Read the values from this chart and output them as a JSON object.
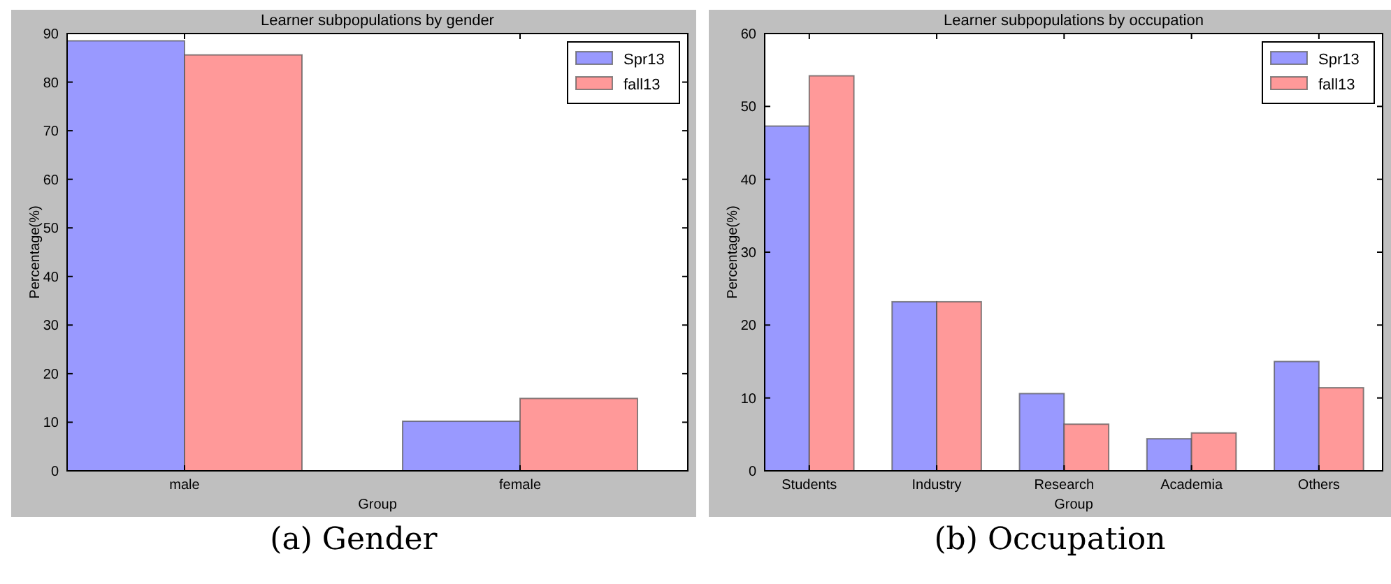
{
  "chart_data": [
    {
      "type": "bar",
      "title": "Learner subpopulations by gender",
      "xlabel": "Group",
      "ylabel": "Percentage(%)",
      "categories": [
        "male",
        "female"
      ],
      "series": [
        {
          "name": "Spr13",
          "color": "#9999ff",
          "values": [
            88.5,
            10.2
          ]
        },
        {
          "name": "fall13",
          "color": "#ff9999",
          "values": [
            85.6,
            14.9
          ]
        }
      ],
      "ylim": [
        0,
        90
      ],
      "yticks": [
        0,
        10,
        20,
        30,
        40,
        50,
        60,
        70,
        80,
        90
      ],
      "grid": false,
      "legend": "top right",
      "annotations": [
        "(a) Gender"
      ]
    },
    {
      "type": "bar",
      "title": "Learner subpopulations by occupation",
      "xlabel": "Group",
      "ylabel": "Percentage(%)",
      "categories": [
        "Students",
        "Industry",
        "Research",
        "Academia",
        "Others"
      ],
      "series": [
        {
          "name": "Spr13",
          "color": "#9999ff",
          "values": [
            47.3,
            23.2,
            10.6,
            4.4,
            15.0
          ]
        },
        {
          "name": "fall13",
          "color": "#ff9999",
          "values": [
            54.2,
            23.2,
            6.4,
            5.2,
            11.4
          ]
        }
      ],
      "ylim": [
        0,
        60
      ],
      "yticks": [
        0,
        10,
        20,
        30,
        40,
        50,
        60
      ],
      "grid": false,
      "legend": "top right",
      "annotations": [
        "(b) Occupation"
      ]
    }
  ]
}
